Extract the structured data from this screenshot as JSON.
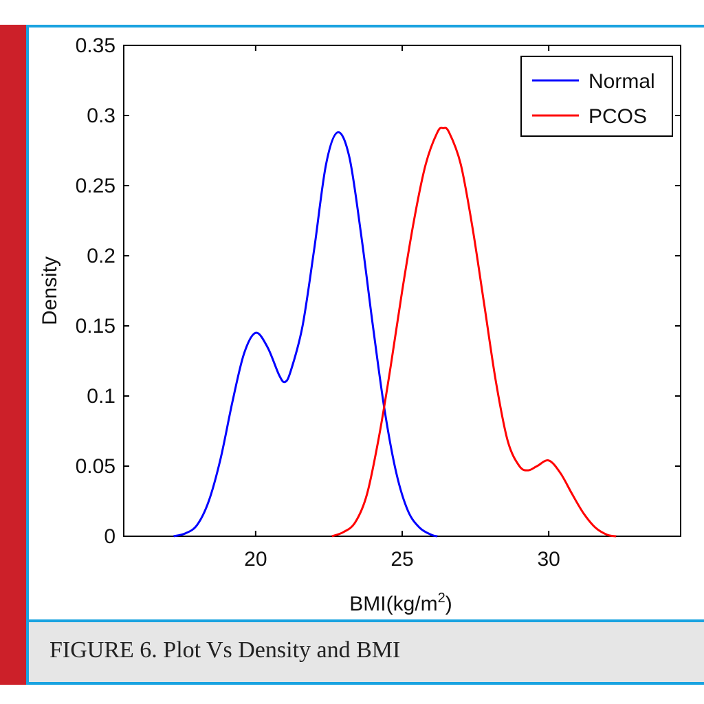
{
  "caption": "FIGURE 6. Plot Vs Density and BMI",
  "colors": {
    "accent_red": "#cc2029",
    "frame_blue": "#1aa3e0",
    "caption_bg": "#e6e6e6"
  },
  "chart_data": {
    "type": "line",
    "title": "",
    "xlabel": "BMI(kg/m",
    "xlabel_superscript": "2",
    "xlabel_suffix": ")",
    "ylabel": "Density",
    "xlim": [
      15.5,
      34.5
    ],
    "ylim": [
      0,
      0.35
    ],
    "xticks": [
      20,
      25,
      30
    ],
    "xtick_labels": [
      "20",
      "25",
      "30"
    ],
    "yticks": [
      0,
      0.05,
      0.1,
      0.15,
      0.2,
      0.25,
      0.3,
      0.35
    ],
    "ytick_labels": [
      "0",
      "0.05",
      "0.1",
      "0.15",
      "0.2",
      "0.25",
      "0.3",
      "0.35"
    ],
    "grid": false,
    "legend_position": "top-right",
    "series": [
      {
        "name": "Normal",
        "color": "#0000ff",
        "x": [
          17.2,
          17.6,
          18.0,
          18.4,
          18.8,
          19.2,
          19.6,
          20.0,
          20.4,
          20.8,
          21.0,
          21.2,
          21.6,
          22.0,
          22.4,
          22.8,
          23.2,
          23.6,
          24.0,
          24.4,
          24.8,
          25.2,
          25.6,
          26.0,
          26.2
        ],
        "y": [
          0.0,
          0.002,
          0.008,
          0.025,
          0.055,
          0.095,
          0.13,
          0.145,
          0.135,
          0.115,
          0.11,
          0.118,
          0.15,
          0.205,
          0.265,
          0.288,
          0.27,
          0.215,
          0.15,
          0.09,
          0.045,
          0.018,
          0.006,
          0.001,
          0.0
        ]
      },
      {
        "name": "PCOS",
        "color": "#ff0000",
        "x": [
          22.6,
          23.0,
          23.4,
          23.8,
          24.2,
          24.6,
          25.0,
          25.4,
          25.8,
          26.2,
          26.4,
          26.6,
          27.0,
          27.4,
          27.8,
          28.2,
          28.6,
          29.0,
          29.3,
          29.6,
          30.0,
          30.4,
          30.8,
          31.2,
          31.6,
          32.0,
          32.3
        ],
        "y": [
          0.0,
          0.003,
          0.01,
          0.03,
          0.07,
          0.12,
          0.175,
          0.225,
          0.265,
          0.288,
          0.291,
          0.288,
          0.265,
          0.22,
          0.165,
          0.11,
          0.068,
          0.05,
          0.047,
          0.05,
          0.054,
          0.045,
          0.03,
          0.016,
          0.006,
          0.001,
          0.0
        ]
      }
    ]
  }
}
